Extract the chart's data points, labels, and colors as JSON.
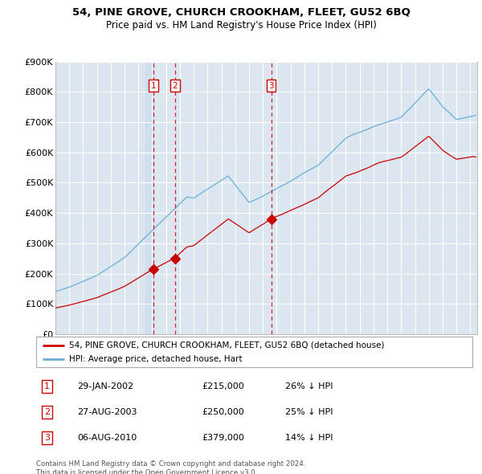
{
  "title1": "54, PINE GROVE, CHURCH CROOKHAM, FLEET, GU52 6BQ",
  "title2": "Price paid vs. HM Land Registry's House Price Index (HPI)",
  "background_color": "#dce6f0",
  "ylim": [
    0,
    900000
  ],
  "yticks": [
    0,
    100000,
    200000,
    300000,
    400000,
    500000,
    600000,
    700000,
    800000,
    900000
  ],
  "ytick_labels": [
    "£0",
    "£100K",
    "£200K",
    "£300K",
    "£400K",
    "£500K",
    "£600K",
    "£700K",
    "£800K",
    "£900K"
  ],
  "xlim_start": 1995.0,
  "xlim_end": 2025.5,
  "legend_line1": "54, PINE GROVE, CHURCH CROOKHAM, FLEET, GU52 6BQ (detached house)",
  "legend_line2": "HPI: Average price, detached house, Hart",
  "sales": [
    {
      "num": 1,
      "date": "29-JAN-2002",
      "price": 215000,
      "pct": "26%",
      "year": 2002.08
    },
    {
      "num": 2,
      "date": "27-AUG-2003",
      "price": 250000,
      "pct": "25%",
      "year": 2003.65
    },
    {
      "num": 3,
      "date": "06-AUG-2010",
      "price": 379000,
      "pct": "14%",
      "year": 2010.6
    }
  ],
  "copyright": "Contains HM Land Registry data © Crown copyright and database right 2024.\nThis data is licensed under the Open Government Licence v3.0.",
  "red_color": "#cc0000",
  "blue_color": "#6aaed6",
  "shade_color": "#ddeeff"
}
